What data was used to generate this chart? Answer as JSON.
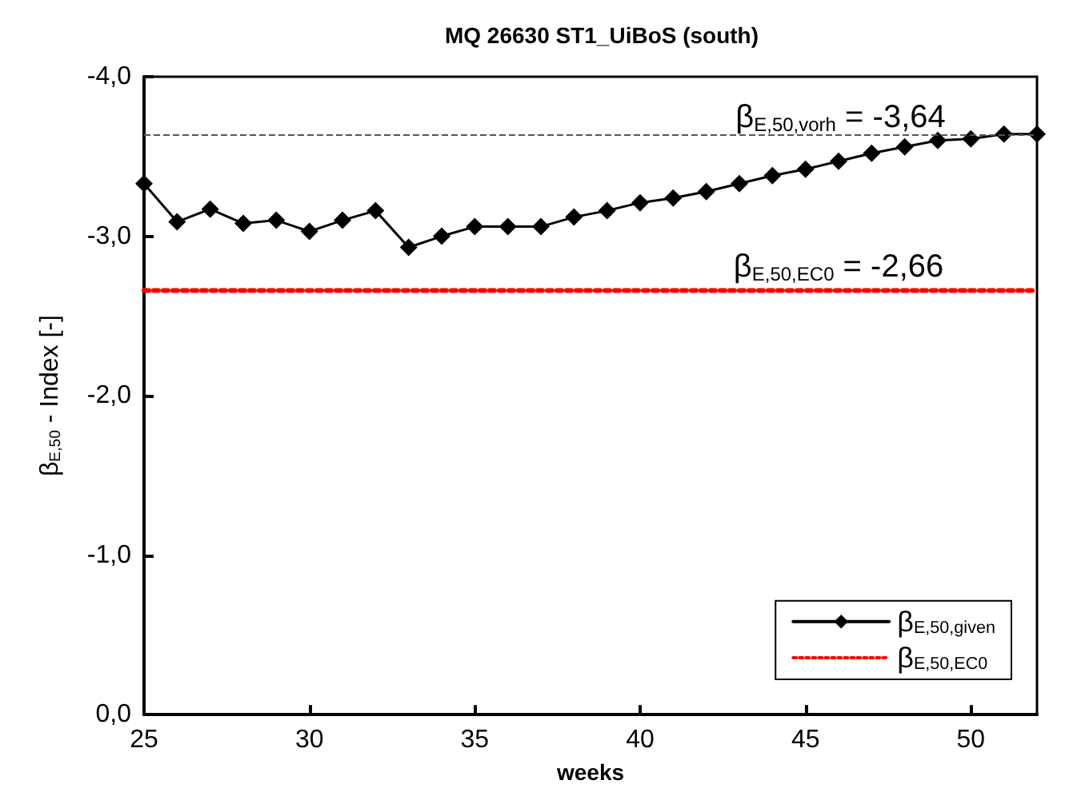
{
  "chart_data": {
    "type": "line",
    "title": "MQ 26630 ST1_UiBoS (south)",
    "xlabel": "weeks",
    "ylabel": "β$_{E,50}$ - Index [-]",
    "x": [
      25,
      26,
      27,
      28,
      29,
      30,
      31,
      32,
      33,
      34,
      35,
      36,
      37,
      38,
      39,
      40,
      41,
      42,
      43,
      44,
      45,
      46,
      47,
      48,
      49,
      50,
      51,
      52
    ],
    "series": [
      {
        "name": "β$_{E,50,given}$",
        "color": "#000000",
        "marker": "diamond",
        "line_style": "solid",
        "values": [
          -3.33,
          -3.09,
          -3.17,
          -3.08,
          -3.1,
          -3.03,
          -3.1,
          -3.16,
          -2.93,
          -3.0,
          -3.06,
          -3.06,
          -3.06,
          -3.12,
          -3.16,
          -3.21,
          -3.24,
          -3.28,
          -3.33,
          -3.38,
          -3.42,
          -3.47,
          -3.52,
          -3.56,
          -3.6,
          -3.61,
          -3.64,
          -3.64
        ]
      },
      {
        "name": "β$_{E,50,EC0}$",
        "color": "#ff0000",
        "marker": "none",
        "line_style": "dotted",
        "x": [
          25,
          52
        ],
        "values": [
          -2.66,
          -2.66
        ]
      }
    ],
    "ref_lines": [
      {
        "axis": "y",
        "value": -3.64,
        "label": "β$_{E,50,vorh}$ = -3,64",
        "color": "#555555",
        "line_style": "dashed"
      }
    ],
    "annotations": [
      {
        "text": "β$_{E,50,EC0}$ = -2,66",
        "x": 46,
        "y": -2.66
      }
    ],
    "xlim": [
      25,
      52
    ],
    "xticks": [
      25,
      30,
      35,
      40,
      45,
      50
    ],
    "ylim": [
      0,
      -4
    ],
    "yticks": [
      {
        "value": 0,
        "label": "0,0"
      },
      {
        "value": -1,
        "label": "-1,0"
      },
      {
        "value": -2,
        "label": "-2,0"
      },
      {
        "value": -3,
        "label": "-3,0"
      },
      {
        "value": -4,
        "label": "-4,0"
      }
    ],
    "grid": false,
    "legend": "bottom right"
  }
}
